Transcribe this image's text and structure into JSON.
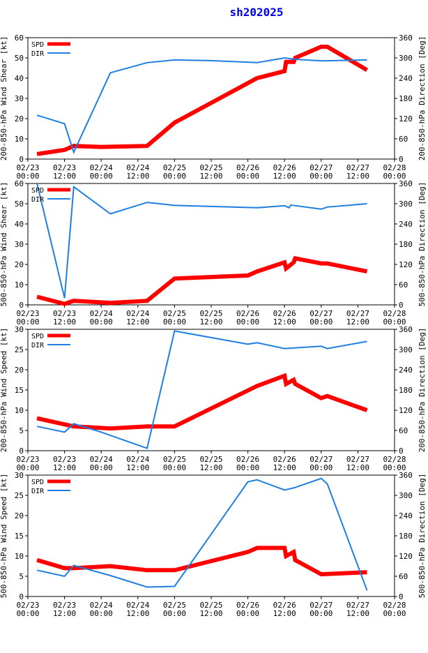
{
  "title": "sh202025",
  "colors": {
    "spd": "#ff0000",
    "dir": "#1e7fe0"
  },
  "legend": {
    "spd": "SPD",
    "dir": "DIR"
  },
  "chart_data": [
    {
      "type": "line",
      "ylabel_left": "200-850-hPa Wind Shear [kt]",
      "ylabel_right": "200-850-hPa Direction [Deg]",
      "xlim": [
        0,
        120
      ],
      "ylim_left": [
        0,
        60
      ],
      "ylim_right": [
        0,
        360
      ],
      "left_ticks": [
        0,
        10,
        20,
        30,
        40,
        50,
        60
      ],
      "right_ticks": [
        0,
        60,
        120,
        180,
        240,
        300,
        360
      ],
      "x_ticks": [
        0,
        12,
        24,
        36,
        48,
        60,
        72,
        84,
        96,
        108,
        120
      ],
      "x_tick_labels": [
        [
          "02/23",
          "00:00"
        ],
        [
          "02/23",
          "12:00"
        ],
        [
          "02/24",
          "00:00"
        ],
        [
          "02/24",
          "12:00"
        ],
        [
          "02/25",
          "00:00"
        ],
        [
          "02/25",
          "12:00"
        ],
        [
          "02/26",
          "00:00"
        ],
        [
          "02/26",
          "12:00"
        ],
        [
          "02/27",
          "00:00"
        ],
        [
          "02/27",
          "12:00"
        ],
        [
          "02/28",
          "00:00"
        ]
      ],
      "series": [
        {
          "name": "SPD",
          "x": [
            3,
            12,
            15,
            24,
            39,
            48,
            75,
            84,
            84.5,
            87,
            87.5,
            96,
            98,
            111
          ],
          "values": [
            2.5,
            4.5,
            6.5,
            6,
            6.5,
            18,
            40,
            43.5,
            48,
            48,
            50,
            55.5,
            55.5,
            44
          ]
        },
        {
          "name": "DIR",
          "x": [
            3,
            12,
            15,
            27,
            39,
            48,
            60,
            75,
            84,
            87,
            96,
            111
          ],
          "values": [
            130,
            105,
            20,
            256,
            286,
            294,
            292,
            286,
            300,
            296,
            291,
            294
          ]
        }
      ]
    },
    {
      "type": "line",
      "ylabel_left": "500-850-hPa Wind Shear [kt]",
      "ylabel_right": "500-850-hPa Direction [Deg]",
      "xlim": [
        0,
        120
      ],
      "ylim_left": [
        0,
        60
      ],
      "ylim_right": [
        0,
        360
      ],
      "left_ticks": [
        0,
        10,
        20,
        30,
        40,
        50,
        60
      ],
      "right_ticks": [
        0,
        60,
        120,
        180,
        240,
        300,
        360
      ],
      "x_ticks": [
        0,
        12,
        24,
        36,
        48,
        60,
        72,
        84,
        96,
        108,
        120
      ],
      "x_tick_labels": [
        [
          "02/23",
          "00:00"
        ],
        [
          "02/23",
          "12:00"
        ],
        [
          "02/24",
          "00:00"
        ],
        [
          "02/24",
          "12:00"
        ],
        [
          "02/25",
          "00:00"
        ],
        [
          "02/25",
          "12:00"
        ],
        [
          "02/26",
          "00:00"
        ],
        [
          "02/26",
          "12:00"
        ],
        [
          "02/27",
          "00:00"
        ],
        [
          "02/27",
          "12:00"
        ],
        [
          "02/28",
          "00:00"
        ]
      ],
      "series": [
        {
          "name": "SPD",
          "x": [
            3,
            12,
            15,
            27,
            39,
            48,
            72,
            75,
            84,
            84.5,
            87,
            87.5,
            96,
            98,
            111
          ],
          "values": [
            4,
            0.5,
            2,
            1,
            2,
            13,
            14.5,
            16.5,
            21,
            18,
            21,
            23,
            20.5,
            20.5,
            16.5
          ]
        },
        {
          "name": "DIR",
          "x": [
            3,
            12,
            15,
            27,
            39,
            48,
            75,
            84,
            85.5,
            86,
            96,
            98,
            111
          ],
          "values": [
            360,
            20,
            350,
            270,
            304,
            295,
            288,
            294,
            288,
            296,
            284,
            290,
            300
          ]
        }
      ]
    },
    {
      "type": "line",
      "ylabel_left": "200-850-hPa Wind Speed [kt]",
      "ylabel_right": "200-850-hPa Direction [Deg]",
      "xlim": [
        0,
        120
      ],
      "ylim_left": [
        0,
        30
      ],
      "ylim_right": [
        0,
        360
      ],
      "left_ticks": [
        0,
        5,
        10,
        15,
        20,
        25,
        30
      ],
      "right_ticks": [
        0,
        60,
        120,
        180,
        240,
        300,
        360
      ],
      "x_ticks": [
        0,
        12,
        24,
        36,
        48,
        60,
        72,
        84,
        96,
        108,
        120
      ],
      "x_tick_labels": [
        [
          "02/23",
          "00:00"
        ],
        [
          "02/23",
          "12:00"
        ],
        [
          "02/24",
          "00:00"
        ],
        [
          "02/24",
          "12:00"
        ],
        [
          "02/25",
          "00:00"
        ],
        [
          "02/25",
          "12:00"
        ],
        [
          "02/26",
          "00:00"
        ],
        [
          "02/26",
          "12:00"
        ],
        [
          "02/27",
          "00:00"
        ],
        [
          "02/27",
          "12:00"
        ],
        [
          "02/28",
          "00:00"
        ]
      ],
      "series": [
        {
          "name": "SPD",
          "x": [
            3,
            12,
            15,
            27,
            39,
            48,
            75,
            84,
            84.5,
            87,
            87.5,
            96,
            98,
            111
          ],
          "values": [
            8,
            6.5,
            6,
            5.5,
            6,
            6,
            16,
            18.5,
            16.5,
            17.5,
            16.5,
            13,
            13.5,
            10
          ]
        },
        {
          "name": "DIR",
          "x": [
            3,
            12,
            15,
            24,
            39,
            48,
            72,
            75,
            84,
            96,
            98,
            111
          ],
          "values": [
            72,
            55,
            80,
            55,
            7,
            355,
            316,
            320,
            303,
            310,
            303,
            324
          ]
        }
      ]
    },
    {
      "type": "line",
      "ylabel_left": "500-850-hPa Wind Speed [kt]",
      "ylabel_right": "500-850-hPa Direction [Deg]",
      "xlim": [
        0,
        120
      ],
      "ylim_left": [
        0,
        30
      ],
      "ylim_right": [
        0,
        360
      ],
      "left_ticks": [
        0,
        5,
        10,
        15,
        20,
        25,
        30
      ],
      "right_ticks": [
        0,
        60,
        120,
        180,
        240,
        300,
        360
      ],
      "x_ticks": [
        0,
        12,
        24,
        36,
        48,
        60,
        72,
        84,
        96,
        108,
        120
      ],
      "x_tick_labels": [
        [
          "02/23",
          "00:00"
        ],
        [
          "02/23",
          "12:00"
        ],
        [
          "02/24",
          "00:00"
        ],
        [
          "02/24",
          "12:00"
        ],
        [
          "02/25",
          "00:00"
        ],
        [
          "02/25",
          "12:00"
        ],
        [
          "02/26",
          "00:00"
        ],
        [
          "02/26",
          "12:00"
        ],
        [
          "02/27",
          "00:00"
        ],
        [
          "02/27",
          "12:00"
        ],
        [
          "02/28",
          "00:00"
        ]
      ],
      "series": [
        {
          "name": "SPD",
          "x": [
            3,
            12,
            15,
            27,
            39,
            48,
            72,
            75,
            84,
            84.5,
            87,
            87.5,
            96,
            111
          ],
          "values": [
            9,
            7,
            7,
            7.5,
            6.5,
            6.5,
            11,
            12,
            12,
            10,
            11,
            9,
            5.5,
            6
          ]
        },
        {
          "name": "DIR",
          "x": [
            3,
            12,
            15,
            27,
            39,
            48,
            72,
            75,
            84,
            87,
            96,
            98,
            111
          ],
          "values": [
            78,
            60,
            92,
            62,
            28,
            30,
            340,
            346,
            316,
            322,
            350,
            334,
            18
          ]
        }
      ]
    }
  ]
}
